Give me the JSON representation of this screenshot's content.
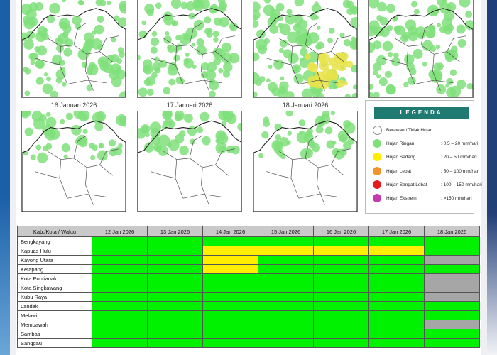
{
  "maps": [
    {
      "date": "",
      "level": "moderate"
    },
    {
      "date": "",
      "level": "moderate"
    },
    {
      "date": "",
      "level": "high"
    },
    {
      "date": "",
      "level": "moderate"
    },
    {
      "date": "16 Januari 2026",
      "level": "low"
    },
    {
      "date": "17 Januari 2026",
      "level": "low"
    },
    {
      "date": "18 Januari 2026",
      "level": "low"
    }
  ],
  "legend": {
    "title": "LEGENDA",
    "items": [
      {
        "label": "Berawan / Tidak Hujan",
        "range": "",
        "color": "#ffffff"
      },
      {
        "label": "Hujan Ringan",
        "range": ": 0.5 – 20 mm/hari",
        "color": "#7fe07a"
      },
      {
        "label": "Hujan Sedang",
        "range": ": 20 – 50 mm/hari",
        "color": "#ffee00"
      },
      {
        "label": "Hujan Lebat",
        "range": ": 50 – 100 mm/hari",
        "color": "#f0932b"
      },
      {
        "label": "Hujan Sangat Lebat",
        "range": ": 100 – 150 mm/hari",
        "color": "#e61b1b"
      },
      {
        "label": "Hujan Ekstrem",
        "range": ": >150 mm/hari",
        "color": "#c43bb0"
      }
    ]
  },
  "table": {
    "header_first": "Kab./Kota / Waktu",
    "dates": [
      "12 Jan 2026",
      "13 Jan 2026",
      "14 Jan 2026",
      "15 Jan 2026",
      "16 Jan 2026",
      "17 Jan 2026",
      "18 Jan 2026"
    ],
    "rows": [
      {
        "name": "Bengkayang",
        "cells": [
          "g",
          "g",
          "g",
          "g",
          "g",
          "g",
          "g"
        ]
      },
      {
        "name": "Kapuas Hulu",
        "cells": [
          "g",
          "g",
          "y",
          "y",
          "y",
          "y",
          "g"
        ]
      },
      {
        "name": "Kayong Utara",
        "cells": [
          "g",
          "g",
          "y",
          "g",
          "g",
          "g",
          "s"
        ]
      },
      {
        "name": "Ketapang",
        "cells": [
          "g",
          "g",
          "y",
          "g",
          "g",
          "g",
          "g"
        ]
      },
      {
        "name": "Kota Pontianak",
        "cells": [
          "g",
          "g",
          "g",
          "g",
          "g",
          "g",
          "s"
        ]
      },
      {
        "name": "Kota Singkawang",
        "cells": [
          "g",
          "g",
          "g",
          "g",
          "g",
          "g",
          "s"
        ]
      },
      {
        "name": "Kubu Raya",
        "cells": [
          "g",
          "g",
          "g",
          "g",
          "g",
          "g",
          "s"
        ]
      },
      {
        "name": "Landak",
        "cells": [
          "g",
          "g",
          "g",
          "g",
          "g",
          "g",
          "g"
        ]
      },
      {
        "name": "Melawi",
        "cells": [
          "g",
          "g",
          "g",
          "g",
          "g",
          "g",
          "g"
        ]
      },
      {
        "name": "Mempawah",
        "cells": [
          "g",
          "g",
          "g",
          "g",
          "g",
          "g",
          "s"
        ]
      },
      {
        "name": "Sambas",
        "cells": [
          "g",
          "g",
          "g",
          "g",
          "g",
          "g",
          "g"
        ]
      },
      {
        "name": "Sanggau",
        "cells": [
          "g",
          "g",
          "g",
          "g",
          "g",
          "g",
          "g"
        ]
      }
    ],
    "colors": {
      "g": "#00f200",
      "y": "#ffee00",
      "s": "#a6a6a6"
    }
  }
}
